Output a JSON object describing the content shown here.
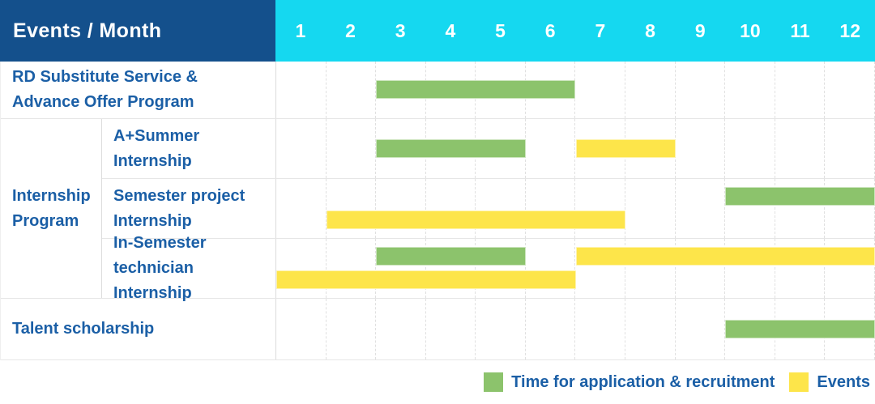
{
  "header": {
    "title": "Events / Month",
    "months": [
      "1",
      "2",
      "3",
      "4",
      "5",
      "6",
      "7",
      "8",
      "9",
      "10",
      "11",
      "12"
    ]
  },
  "colors": {
    "header_bg": "#14508c",
    "months_bg": "#15d8f0",
    "header_text": "#ffffff",
    "label_text": "#1b5fa6",
    "application": "#8cc36c",
    "event": "#fde54a",
    "grid_line": "#e0e0e0",
    "row_border": "#e6e6e6"
  },
  "legend": {
    "items": [
      {
        "kind": "application",
        "label": "Time for application & recruitment"
      },
      {
        "kind": "event",
        "label": "Events"
      }
    ]
  },
  "chart_data": {
    "type": "gantt",
    "title": "Events / Month",
    "x_unit": "month",
    "x_range": [
      1,
      12
    ],
    "grid": "vertical-dashed",
    "legend_position": "bottom-right",
    "group_label_lines": [
      "Internship",
      "Program"
    ],
    "rows": [
      {
        "group": "",
        "label_lines": [
          "RD Substitute Service &",
          "Advance Offer Program"
        ],
        "bars": [
          {
            "kind": "application",
            "start_month": 3,
            "end_month": 6,
            "level": "center"
          }
        ]
      },
      {
        "group": "Internship Program",
        "label_lines": [
          "A+Summer",
          "Internship"
        ],
        "bars": [
          {
            "kind": "application",
            "start_month": 3,
            "end_month": 5,
            "level": "center"
          },
          {
            "kind": "event",
            "start_month": 7,
            "end_month": 8,
            "level": "center"
          }
        ]
      },
      {
        "group": "Internship Program",
        "label_lines": [
          "Semester project",
          "Internship"
        ],
        "bars": [
          {
            "kind": "application",
            "start_month": 10,
            "end_month": 12,
            "level": "upper"
          },
          {
            "kind": "event",
            "start_month": 2,
            "end_month": 7,
            "level": "lower"
          }
        ]
      },
      {
        "group": "Internship Program",
        "label_lines": [
          "In-Semester",
          "technician Internship"
        ],
        "bars": [
          {
            "kind": "application",
            "start_month": 3,
            "end_month": 5,
            "level": "upper"
          },
          {
            "kind": "event",
            "start_month": 7,
            "end_month": 12,
            "level": "upper"
          },
          {
            "kind": "event",
            "start_month": 1,
            "end_month": 6,
            "level": "lower"
          }
        ]
      },
      {
        "group": "",
        "label_lines": [
          "Talent scholarship"
        ],
        "bars": [
          {
            "kind": "application",
            "start_month": 10,
            "end_month": 12,
            "level": "center"
          }
        ]
      }
    ]
  }
}
